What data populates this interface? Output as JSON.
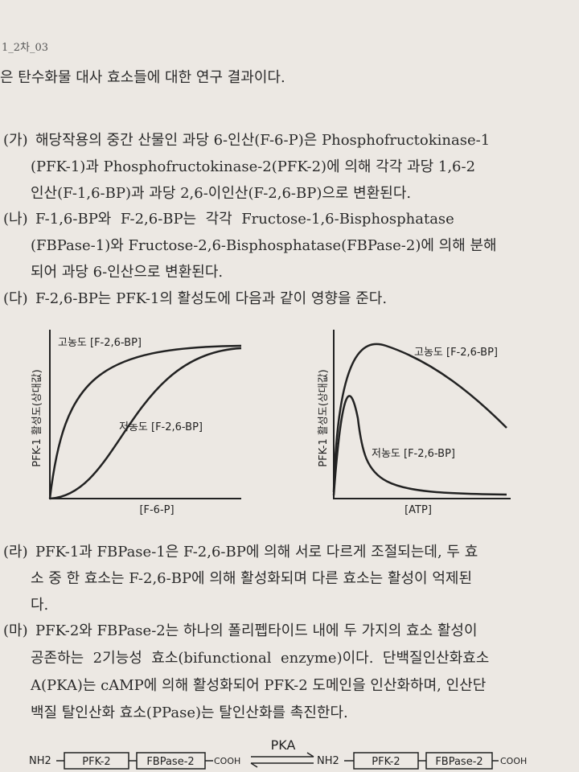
{
  "header": {
    "code": "1_2차_03",
    "intro": "은 탄수화물 대사 효소들에 대한 연구 결과이다."
  },
  "items": [
    {
      "label": "(가)",
      "lines": [
        "해당작용의 중간 산물인 과당 6-인산(F-6-P)은 Phosphofructokinase-1",
        "(PFK-1)과 Phosphofructokinase-2(PFK-2)에 의해 각각 과당 1,6-2",
        "인산(F-1,6-BP)과 과당 2,6-이인산(F-2,6-BP)으로 변환된다."
      ]
    },
    {
      "label": "(나)",
      "lines": [
        "F-1,6-BP와  F-2,6-BP는  각각  Fructose-1,6-Bisphosphatase",
        "(FBPase-1)와 Fructose-2,6-Bisphosphatase(FBPase-2)에 의해 분해",
        "되어 과당 6-인산으로 변환된다."
      ]
    },
    {
      "label": "(다)",
      "lines": [
        "F-2,6-BP는 PFK-1의 활성도에 다음과 같이 영향을 준다."
      ]
    },
    {
      "label": "(라)",
      "lines": [
        "PFK-1과 FBPase-1은 F-2,6-BP에 의해 서로 다르게 조절되는데, 두 효",
        "소 중 한 효소는 F-2,6-BP에 의해 활성화되며 다른 효소는 활성이 억제된",
        "다."
      ]
    },
    {
      "label": "(마)",
      "lines": [
        "PFK-2와 FBPase-2는 하나의 폴리펩타이드 내에 두 가지의 효소 활성이",
        "공존하는  2기능성  효소(bifunctional  enzyme)이다.  단백질인산화효소",
        "A(PKA)는 cAMP에 의해 활성화되어 PFK-2 도메인을 인산화하며, 인산단",
        "백질 탈인산화 효소(PPase)는 탈인산화를 촉진한다."
      ]
    }
  ],
  "graphs": [
    {
      "y_label": "PFK-1 활성도(상대값)",
      "x_label": "[F-6-P]",
      "high": "고농도 [F-2,6-BP]",
      "low": "저농도 [F-2,6-BP]"
    },
    {
      "y_label": "PFK-1 활성도(상대값)",
      "x_label": "[ATP]",
      "high": "고농도 [F-2,6-BP]",
      "low": "저농도 [F-2,6-BP]"
    }
  ],
  "diagram": {
    "n_term": "NH2",
    "domain1": "PFK-2",
    "domain2": "FBPase-2",
    "c_term": "COOH",
    "enzyme": "PKA"
  }
}
